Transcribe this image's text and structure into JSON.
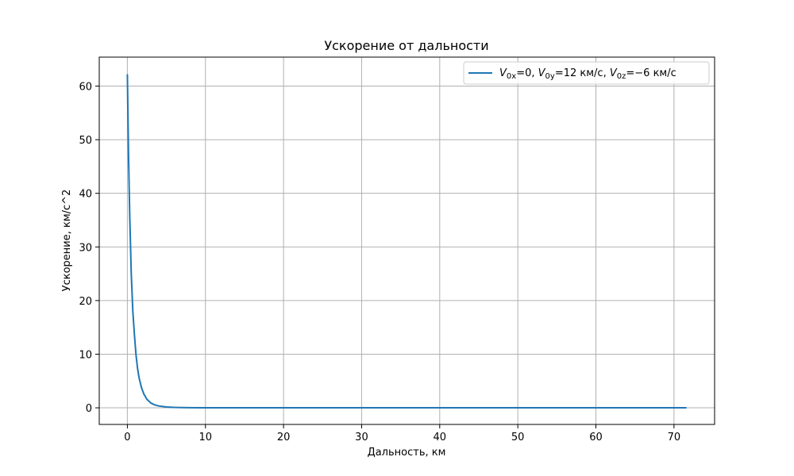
{
  "chart_data": {
    "type": "line",
    "title": "Ускорение от дальности",
    "xlabel": "Дальность, км",
    "ylabel": "Ускорение, км/с^2",
    "xlim": [
      -3.6,
      75.2
    ],
    "ylim": [
      -3.1,
      65.4
    ],
    "xticks": [
      0,
      10,
      20,
      30,
      40,
      50,
      60,
      70
    ],
    "yticks": [
      0,
      10,
      20,
      30,
      40,
      50,
      60
    ],
    "grid": true,
    "legend_position": "top-right",
    "series": [
      {
        "name": "V_{0x}=0, V_{0y}=12 км/с, V_{0z}=−6 км/с",
        "color": "#1f77b4",
        "x": [
          0,
          0.15,
          0.3,
          0.5,
          0.7,
          0.9,
          1.1,
          1.3,
          1.5,
          1.8,
          2.1,
          2.5,
          3.0,
          3.5,
          4.0,
          5.0,
          6.0,
          7.0,
          8.0,
          10.0,
          15.0,
          20.0,
          30.0,
          40.0,
          50.0,
          60.0,
          71.6
        ],
        "y": [
          62.2,
          47,
          36,
          25,
          18,
          13.7,
          10.0,
          7.4,
          5.6,
          3.8,
          2.6,
          1.6,
          0.9,
          0.55,
          0.35,
          0.16,
          0.08,
          0.05,
          0.03,
          0.01,
          0.003,
          0.001,
          0,
          0,
          0,
          0,
          0
        ]
      }
    ]
  }
}
